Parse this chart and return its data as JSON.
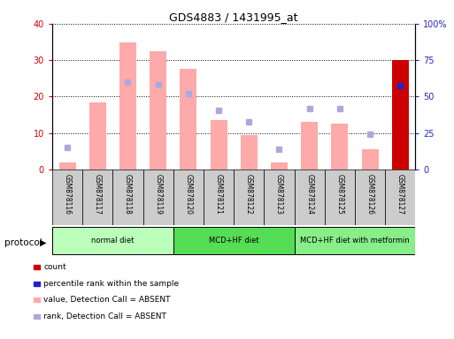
{
  "title": "GDS4883 / 1431995_at",
  "samples": [
    "GSM878116",
    "GSM878117",
    "GSM878118",
    "GSM878119",
    "GSM878120",
    "GSM878121",
    "GSM878122",
    "GSM878123",
    "GSM878124",
    "GSM878125",
    "GSM878126",
    "GSM878127"
  ],
  "value_absent": [
    2.0,
    18.5,
    35.0,
    32.5,
    27.5,
    13.5,
    9.5,
    2.0,
    13.0,
    12.5,
    5.5,
    30.0
  ],
  "rank_absent_pct": [
    15.0,
    null,
    60.0,
    58.0,
    52.0,
    40.5,
    33.0,
    14.0,
    42.0,
    42.0,
    24.5,
    null
  ],
  "count_val": [
    null,
    null,
    null,
    null,
    null,
    null,
    null,
    null,
    null,
    null,
    null,
    30.0
  ],
  "percentile_rank_pct": [
    null,
    null,
    null,
    null,
    null,
    null,
    null,
    null,
    null,
    null,
    null,
    57.5
  ],
  "ylim_left": [
    0,
    40
  ],
  "ylim_right": [
    0,
    100
  ],
  "yticks_left": [
    0,
    10,
    20,
    30,
    40
  ],
  "ytick_labels_left": [
    "0",
    "10",
    "20",
    "30",
    "40"
  ],
  "yticks_right": [
    0,
    25,
    50,
    75,
    100
  ],
  "ytick_labels_right": [
    "0",
    "25",
    "50",
    "75",
    "100%"
  ],
  "group_defs": [
    {
      "start": 0,
      "end": 3,
      "label": "normal diet",
      "color": "#bbffbb"
    },
    {
      "start": 4,
      "end": 7,
      "label": "MCD+HF diet",
      "color": "#55dd55"
    },
    {
      "start": 8,
      "end": 11,
      "label": "MCD+HF diet with metformin",
      "color": "#88ee88"
    }
  ],
  "protocol_label": "protocol",
  "bar_color_absent": "#ffaaaa",
  "bar_color_count": "#cc0000",
  "rank_absent_color": "#aaaadd",
  "percentile_color": "#2222cc",
  "legend_items": [
    {
      "color": "#cc0000",
      "label": "count"
    },
    {
      "color": "#2222cc",
      "label": "percentile rank within the sample"
    },
    {
      "color": "#ffaaaa",
      "label": "value, Detection Call = ABSENT"
    },
    {
      "color": "#aaaadd",
      "label": "rank, Detection Call = ABSENT"
    }
  ],
  "tick_color_left": "#cc0000",
  "tick_color_right": "#2222cc",
  "bg_color": "#ffffff",
  "sample_label_bg": "#cccccc"
}
